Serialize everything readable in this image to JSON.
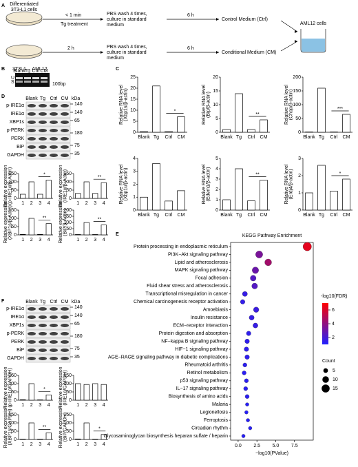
{
  "panels": {
    "A": {
      "label": "A",
      "source": [
        "Differentiated",
        "3T3-L1 cells"
      ],
      "time1": "< 1 min",
      "treatment1": "Tg treatment",
      "wash1": [
        "PBS wash 4 times,",
        "culture in standard",
        "medium"
      ],
      "wait1": "6 h",
      "out1": "Control Medium (Ctrl)",
      "time2": "2 h",
      "wash2": [
        "PBS wash 4 times,",
        "culture in standard",
        "medium"
      ],
      "wait2": "6 h",
      "out2": "Conditional Medium (CM)",
      "target": "AML12 cells"
    },
    "B": {
      "label": "B",
      "title": "3T3L1→ AML12",
      "lanes": [
        "Blank",
        "Tg",
        "Ctrl",
        "CM"
      ],
      "bands": [
        "U",
        "S"
      ],
      "marker": "100bp"
    },
    "C": {
      "label": "C"
    },
    "D": {
      "label": "D",
      "lanes": [
        "Blank",
        "Tg",
        "Ctrl",
        "CM",
        "kDa"
      ],
      "proteins": [
        "p-IRE1α",
        "IRE1α",
        "XBP1s",
        "p-PERK",
        "PERK",
        "BiP",
        "GAPDH"
      ],
      "kda": [
        "140",
        "140",
        "65",
        "180",
        "75",
        "35"
      ]
    },
    "E": {
      "label": "E"
    },
    "F": {
      "label": "F",
      "lanes": [
        "Blank",
        "Tg",
        "Ctrl",
        "CM",
        "kDa"
      ],
      "proteins": [
        "p-IRE1α",
        "IRE1α",
        "XBP1s",
        "p-PERK",
        "PERK",
        "BiP",
        "GAPDH"
      ],
      "kda": [
        "140",
        "140",
        "65",
        "180",
        "75",
        "35"
      ]
    }
  },
  "chart_data": [
    {
      "type": "bar",
      "ylabel": [
        "Relative RNA level",
        "(Xbp1s/β-actin)"
      ],
      "categories": [
        "Blank",
        "Tg",
        "Ctrl",
        "CM"
      ],
      "values": [
        0.3,
        21,
        0.3,
        7
      ],
      "color": "#ffffff",
      "ylim": [
        0,
        25
      ],
      "yticks": [
        0,
        5,
        10,
        15,
        20,
        25
      ],
      "annotation": "*"
    },
    {
      "type": "bar",
      "ylabel": [
        "Relative RNA level",
        "(Bip/β-actin)"
      ],
      "categories": [
        "Blank",
        "Tg",
        "Ctrl",
        "CM"
      ],
      "values": [
        1,
        14,
        1,
        4.5
      ],
      "color": "#ffffff",
      "ylim": [
        0,
        20
      ],
      "yticks": [
        0,
        5,
        10,
        15,
        20
      ],
      "annotation": "**"
    },
    {
      "type": "bar",
      "ylabel": [
        "Relative RNA level",
        "(Chop/β-actin)"
      ],
      "categories": [
        "Blank",
        "Tg",
        "Ctrl",
        "CM"
      ],
      "values": [
        1,
        160,
        1,
        65
      ],
      "color": "#ffffff",
      "ylim": [
        0,
        200
      ],
      "yticks": [
        0,
        50,
        100,
        150,
        200
      ],
      "annotation": "***"
    },
    {
      "type": "bar",
      "ylabel": [
        "Relative RNA level",
        "(Xbp1u/β-actin)"
      ],
      "categories": [
        "Blank",
        "Tg",
        "Ctrl",
        "CM"
      ],
      "values": [
        1,
        3.6,
        0.7,
        1.5
      ],
      "color": "#ffffff",
      "ylim": [
        0,
        4
      ],
      "yticks": [
        0,
        1,
        2,
        3,
        4
      ]
    },
    {
      "type": "bar",
      "ylabel": [
        "Relative RNA level",
        "(Edem1/β-actin)"
      ],
      "categories": [
        "Blank",
        "Tg",
        "Ctrl",
        "CM"
      ],
      "values": [
        1,
        4,
        0.9,
        2.9
      ],
      "color": "#ffffff",
      "ylim": [
        0,
        5
      ],
      "yticks": [
        0,
        1,
        2,
        3,
        4,
        5
      ],
      "annotation": "**"
    },
    {
      "type": "bar",
      "ylabel": [
        "Relative RNA level",
        "(Erdj4/β-actin)"
      ],
      "categories": [
        "Blank",
        "Tg",
        "Ctrl",
        "CM"
      ],
      "values": [
        1,
        2.6,
        1.1,
        1.8
      ],
      "color": "#ffffff",
      "ylim": [
        0,
        3
      ],
      "yticks": [
        0,
        1,
        2,
        3
      ],
      "annotation": "*"
    },
    {
      "type": "bar",
      "ylabel": [
        "Relative expression",
        "(p-IRE1α/β-Actin)"
      ],
      "categories": [
        "1",
        "2",
        "3",
        "4"
      ],
      "values": [
        25,
        100,
        25,
        110
      ],
      "color": "#ffffff",
      "ylim": [
        0,
        150
      ],
      "yticks": [
        0,
        50,
        100,
        150
      ],
      "annotation": "*"
    },
    {
      "type": "bar",
      "ylabel": [
        "Relative expression",
        "(IRE1α/β-Actin)"
      ],
      "categories": [
        "1",
        "2",
        "3",
        "4"
      ],
      "values": [
        30,
        100,
        30,
        95
      ],
      "color": "#ffffff",
      "ylim": [
        0,
        150
      ],
      "yticks": [
        0,
        50,
        100,
        150
      ],
      "annotation": "**"
    },
    {
      "type": "bar",
      "ylabel": [
        "Relative expression",
        "(XBP1s/β-Actin)"
      ],
      "categories": [
        "1",
        "2",
        "3",
        "4"
      ],
      "values": [
        3,
        100,
        3,
        68
      ],
      "color": "#ffffff",
      "ylim": [
        0,
        150
      ],
      "yticks": [
        0,
        50,
        100,
        150
      ],
      "annotation": "**"
    },
    {
      "type": "bar",
      "ylabel": [
        "Relative expression",
        "(BiP/β-Actin)"
      ],
      "categories": [
        "1",
        "2",
        "3",
        "4"
      ],
      "values": [
        3,
        100,
        3,
        80
      ],
      "color": "#ffffff",
      "ylim": [
        0,
        200
      ],
      "yticks": [
        0,
        50,
        100,
        150,
        200
      ],
      "annotation": "**"
    },
    {
      "type": "bar",
      "ylabel": [
        "Relative expression",
        "(p-IRE1α/GAPDH)"
      ],
      "categories": [
        "1",
        "2",
        "3",
        "4"
      ],
      "values": [
        3,
        100,
        2,
        32
      ],
      "color": "#ffffff",
      "ylim": [
        0,
        150
      ],
      "yticks": [
        0,
        50,
        100,
        150
      ],
      "annotation": "*"
    },
    {
      "type": "bar",
      "ylabel": [
        "Relative expression",
        "(IRE1α/GAPDH)"
      ],
      "categories": [
        "1",
        "2",
        "3",
        "4"
      ],
      "values": [
        100,
        95,
        100,
        95
      ],
      "color": "#ffffff",
      "ylim": [
        0,
        150
      ],
      "yticks": [
        0,
        50,
        100,
        150
      ]
    },
    {
      "type": "bar",
      "ylabel": [
        "Relative expression",
        "(XBP1s/GAPDH)"
      ],
      "categories": [
        "1",
        "2",
        "3",
        "4"
      ],
      "values": [
        2,
        100,
        2,
        40
      ],
      "color": "#ffffff",
      "ylim": [
        0,
        150
      ],
      "yticks": [
        0,
        50,
        100,
        150
      ],
      "annotation": "**"
    },
    {
      "type": "bar",
      "ylabel": [
        "Relative expression",
        "(BiP/GAPDH)"
      ],
      "categories": [
        "1",
        "2",
        "3",
        "4"
      ],
      "values": [
        3,
        100,
        2,
        30
      ],
      "color": "#ffffff",
      "ylim": [
        0,
        150
      ],
      "yticks": [
        0,
        50,
        100,
        150
      ],
      "annotation": "*"
    },
    {
      "type": "dot",
      "title": "KEGG Pathway Enrichment",
      "xlabel": "−log10(PValue)",
      "categories": [
        "Protein processing in endoplasmic reticulum",
        "PI3K−Akt signaling pathway",
        "Lipid and atherosclerosis",
        "MAPK signaling pathway",
        "Focal adhesion",
        "Fluid shear stress and atherosclerosis",
        "Transcriptional misregulation in cancer",
        "Chemical carcinogenesis receptor activation",
        "Amoebiasis",
        "Insulin resistance",
        "ECM−receptor interaction",
        "Protein digestion and absorption",
        "NF−kappa B signaling pathway",
        "HIF−1 signaling pathway",
        "AGE−RAGE signaling pathway in diabetic complications",
        "Rheumatoid arthritis",
        "Retinol metabolism",
        "p53 signaling pathway",
        "IL−17 signaling pathway",
        "Biosynthesis of amino acids",
        "Malaria",
        "Legionellosis",
        "Ferroptosis",
        "Circadian rhythm",
        "Glycosaminoglycan biosynthesis heparan sulfate / heparin"
      ],
      "values": [
        9.2,
        2.8,
        4.0,
        2.3,
        2.0,
        2.2,
        0.9,
        0.6,
        2.4,
        1.8,
        2.3,
        1.4,
        1.2,
        1.1,
        1.2,
        0.9,
        0.8,
        1.1,
        1.0,
        1.2,
        1.2,
        1.1,
        1.3,
        1.6,
        0.7
      ],
      "sizes": [
        17,
        12,
        11,
        10,
        8,
        8,
        6,
        5,
        7,
        6,
        6,
        5,
        5,
        5,
        5,
        4,
        4,
        4,
        4,
        4,
        3,
        3,
        3,
        3,
        3
      ],
      "fdr": [
        6.3,
        3.4,
        4.5,
        3.0,
        2.4,
        2.4,
        1.6,
        1.5,
        1.7,
        1.6,
        1.6,
        1.4,
        1.4,
        1.4,
        1.4,
        1.3,
        1.3,
        1.3,
        1.3,
        1.3,
        1.2,
        1.2,
        1.2,
        1.2,
        1.2
      ],
      "xlim": [
        -1,
        10
      ],
      "xticks": [
        {
          "value": 0,
          "label": "0.0"
        },
        2.5,
        {
          "value": 5,
          "label": "5.0"
        },
        7.5
      ],
      "colors": [
        "#2020ff",
        "#ff0000"
      ],
      "clim": [
        1,
        7
      ],
      "color_title": "-log10(FDR)",
      "color_ticks": [
        2,
        4,
        6
      ],
      "size_title": "Count",
      "size_ticks": [
        5,
        10,
        15
      ]
    }
  ]
}
